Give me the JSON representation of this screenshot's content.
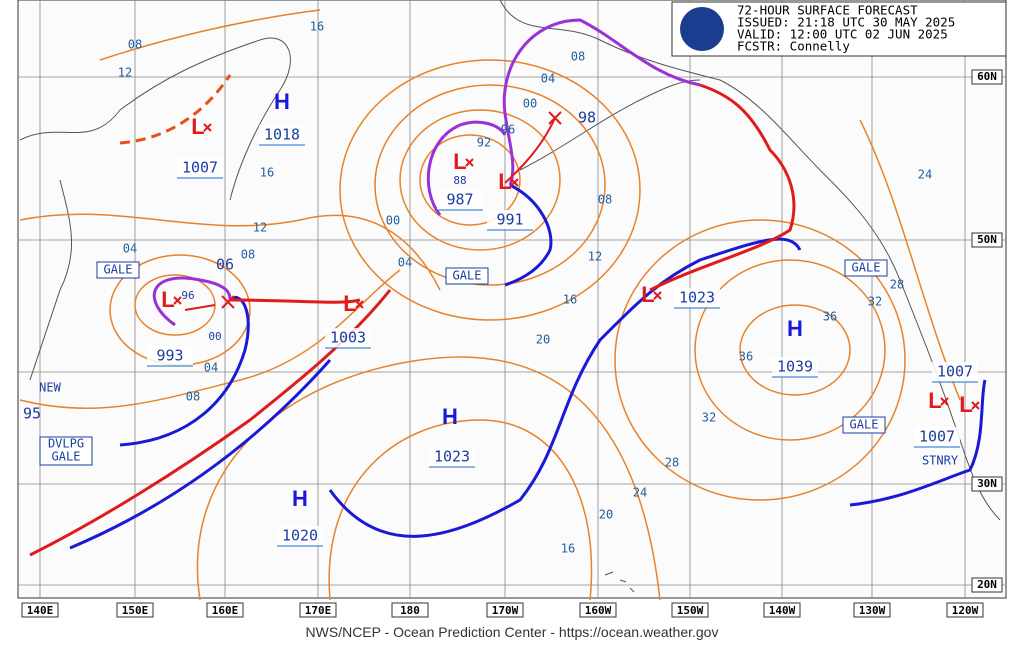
{
  "header": {
    "title": "72-HOUR SURFACE FORECAST",
    "issued": "ISSUED: 21:18 UTC 30 MAY 2025",
    "valid": "VALID:  12:00 UTC 02 JUN 2025",
    "forecaster": "FCSTR:  Connelly"
  },
  "longitudes": [
    "140E",
    "150E",
    "160E",
    "170E",
    "180",
    "170W",
    "160W",
    "150W",
    "140W",
    "130W",
    "120W"
  ],
  "latitudes": [
    "60N",
    "50N",
    "30N",
    "20N"
  ],
  "centers": [
    {
      "symbol": "H",
      "pressure": "1018"
    },
    {
      "symbol": "L",
      "pressure": "1007"
    },
    {
      "symbol": "L",
      "pressure": "987"
    },
    {
      "symbol": "L",
      "pressure": "991"
    },
    {
      "symbol": "L",
      "pressure": "993"
    },
    {
      "symbol": "L",
      "pressure": "1003"
    },
    {
      "symbol": "L",
      "pressure": "1023"
    },
    {
      "symbol": "H",
      "pressure": "1039"
    },
    {
      "symbol": "H",
      "pressure": "1023"
    },
    {
      "symbol": "H",
      "pressure": "1020"
    },
    {
      "symbol": "L",
      "pressure": "1007"
    },
    {
      "symbol": "L",
      "pressure": "1007"
    }
  ],
  "forecast_labels": [
    "98",
    "06",
    "88",
    "96",
    "00",
    "NEW",
    "95",
    "STNRY"
  ],
  "isobar_labels": [
    "08",
    "12",
    "16",
    "08",
    "04",
    "00",
    "96",
    "92",
    "16",
    "12",
    "08",
    "04",
    "00",
    "04",
    "08",
    "12",
    "16",
    "20",
    "04",
    "08",
    "24",
    "28",
    "32",
    "36",
    "36",
    "32",
    "28",
    "24",
    "20",
    "16"
  ],
  "gale_boxes": [
    "GALE",
    "GALE",
    "GALE",
    "GALE"
  ],
  "dvlpg_gale": {
    "line1": "DVLPG",
    "line2": "GALE"
  },
  "footer": "NWS/NCEP - Ocean Prediction Center - https://ocean.weather.gov"
}
